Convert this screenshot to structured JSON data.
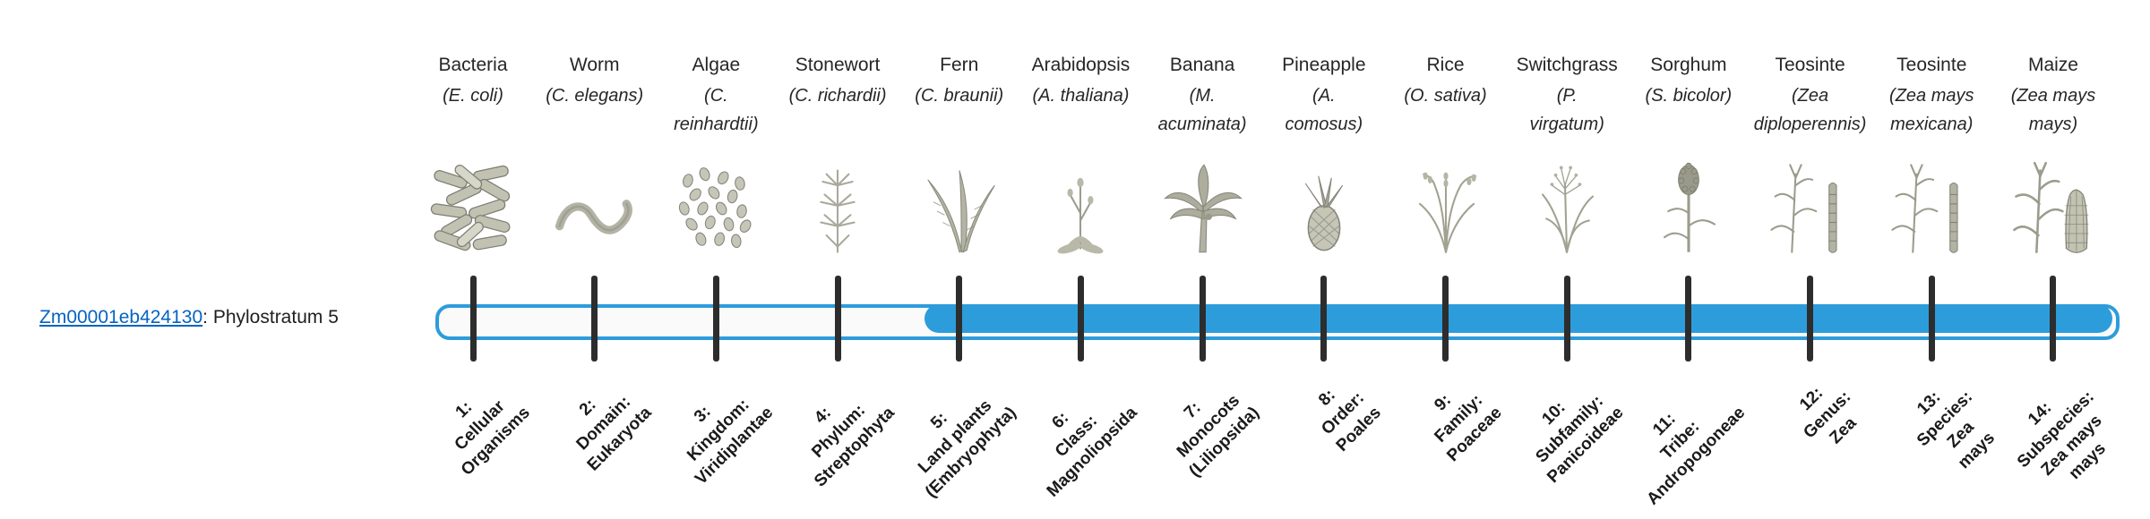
{
  "gene": {
    "id": "Zm00001eb424130",
    "stratum_text": ": Phylostratum 5",
    "link_color": "#0563C1"
  },
  "timeline": {
    "bar_color": "#2D9CDB",
    "track_fill": "#fafafa",
    "tick_color": "#2d2d2d",
    "phylostratum_count": 14,
    "filled_from_stratum": 5
  },
  "organisms": [
    {
      "name": "Bacteria",
      "sci": [
        "(E. coli)"
      ],
      "icon": "bacteria-icon",
      "stratum": [
        "1:",
        "Cellular",
        "Organisms"
      ]
    },
    {
      "name": "Worm",
      "sci": [
        "(C. elegans)"
      ],
      "icon": "worm-icon",
      "stratum": [
        "2:",
        "Domain:",
        "Eukaryota"
      ]
    },
    {
      "name": "Algae",
      "sci": [
        "(C.",
        "reinhardtii)"
      ],
      "icon": "algae-icon",
      "stratum": [
        "3:",
        "Kingdom:",
        "Viridiplantae"
      ]
    },
    {
      "name": "Stonewort",
      "sci": [
        "(C. richardii)"
      ],
      "icon": "stonewort-icon",
      "stratum": [
        "4:",
        "Phylum:",
        "Streptophyta"
      ]
    },
    {
      "name": "Fern",
      "sci": [
        "(C. braunii)"
      ],
      "icon": "fern-icon",
      "stratum": [
        "5:",
        "Land plants",
        "(Embryophyta)"
      ]
    },
    {
      "name": "Arabidopsis",
      "sci": [
        "(A. thaliana)"
      ],
      "icon": "arabidopsis-icon",
      "stratum": [
        "6:",
        "Class:",
        "Magnoliopsida"
      ]
    },
    {
      "name": "Banana",
      "sci": [
        "(M.",
        "acuminata)"
      ],
      "icon": "banana-icon",
      "stratum": [
        "7:",
        "Monocots",
        "(Liliopsida)"
      ]
    },
    {
      "name": "Pineapple",
      "sci": [
        "(A.",
        "comosus)"
      ],
      "icon": "pineapple-icon",
      "stratum": [
        "8:",
        "Order:",
        "Poales"
      ]
    },
    {
      "name": "Rice",
      "sci": [
        "(O. sativa)"
      ],
      "icon": "rice-icon",
      "stratum": [
        "9:",
        "Family:",
        "Poaceae"
      ]
    },
    {
      "name": "Switchgrass",
      "sci": [
        "(P.",
        "virgatum)"
      ],
      "icon": "switchgrass-icon",
      "stratum": [
        "10:",
        "Subfamily:",
        "Panicoideae"
      ]
    },
    {
      "name": "Sorghum",
      "sci": [
        "(S. bicolor)"
      ],
      "icon": "sorghum-icon",
      "stratum": [
        "11:",
        "Tribe:",
        "Andropogoneae"
      ]
    },
    {
      "name": "Teosinte",
      "sci": [
        "(Zea",
        "diploperennis)"
      ],
      "icon": "teosinte-icon",
      "stratum": [
        "12:",
        "Genus:",
        "Zea"
      ]
    },
    {
      "name": "Teosinte",
      "sci": [
        "(Zea mays",
        "mexicana)"
      ],
      "icon": "teosinte-icon",
      "stratum": [
        "13:",
        "Species:",
        "Zea",
        "mays"
      ]
    },
    {
      "name": "Maize",
      "sci": [
        "(Zea mays",
        "mays)"
      ],
      "icon": "maize-icon",
      "stratum": [
        "14:",
        "Subspecies:",
        "Zea mays",
        "mays"
      ]
    }
  ]
}
